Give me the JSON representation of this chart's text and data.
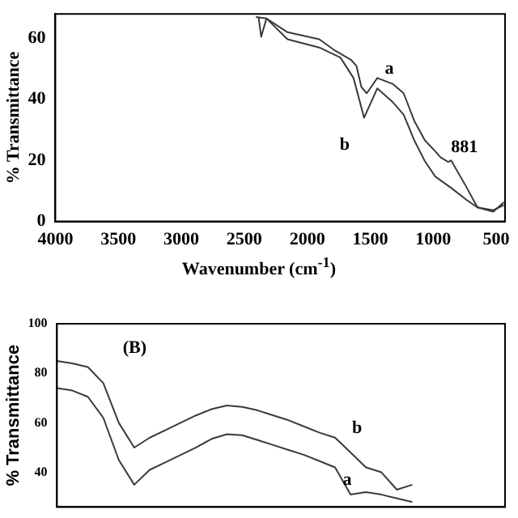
{
  "chart_data": [
    {
      "type": "line",
      "xlabel": "Wavenumber (cm$^{-1}$)",
      "ylabel": "% Transmittance",
      "xlim": [
        4000,
        430
      ],
      "xticks": [
        4000,
        3500,
        3000,
        2500,
        2000,
        1500,
        1000,
        500
      ],
      "ylim": [
        0,
        68
      ],
      "yticks": [
        0,
        20,
        40,
        60
      ],
      "grid": false,
      "legend": false,
      "annotations": [
        {
          "text": "881",
          "x": 881,
          "y": 19.5
        }
      ],
      "series": [
        {
          "name": "a",
          "color": "#3a3a3a",
          "x": [
            2408,
            2324,
            2157,
            1905,
            1780,
            1654,
            1610,
            1570,
            1528,
            1444,
            1319,
            1235,
            1151,
            1067,
            984,
            942,
            881,
            858,
            733,
            649,
            523,
            439
          ],
          "values": [
            67,
            66.5,
            62,
            59.7,
            56,
            53,
            51,
            44,
            42,
            47,
            45,
            42,
            33,
            26.6,
            23,
            21,
            19.5,
            20,
            11,
            4.6,
            3.7,
            5.4
          ]
        },
        {
          "name": "b",
          "color": "#3a3a3a",
          "x": [
            2387,
            2366,
            2324,
            2157,
            1905,
            1737,
            1633,
            1549,
            1444,
            1319,
            1235,
            1151,
            1067,
            984,
            858,
            733,
            649,
            523,
            439
          ],
          "values": [
            67,
            60.5,
            66.5,
            59.7,
            57,
            53.7,
            47,
            34,
            43.6,
            39,
            35,
            26.6,
            19.8,
            14.7,
            11,
            7,
            4.6,
            3.2,
            6.3
          ]
        }
      ]
    },
    {
      "type": "line",
      "ylabel": "% Transmittance",
      "categories": [
        null,
        null,
        null,
        null,
        null,
        null,
        null,
        null,
        null,
        null,
        null,
        null,
        null,
        null,
        null,
        null,
        null,
        null,
        null,
        null,
        null,
        null,
        null,
        null,
        null,
        null,
        null,
        null,
        null,
        null
      ],
      "ylim": [
        26,
        100
      ],
      "yticks": [
        40,
        60,
        80,
        100
      ],
      "tick_labels": "y",
      "grid": false,
      "legend": false,
      "annotations": [
        "(B)"
      ],
      "series": [
        {
          "name": "b",
          "color": "#3a3a3a",
          "values": [
            85,
            84,
            82.5,
            76,
            60,
            50,
            54,
            57,
            60,
            63,
            65.5,
            67,
            66.4,
            65,
            63,
            61,
            58.5,
            56,
            54,
            48,
            42,
            40,
            33,
            35,
            null,
            null,
            null,
            null,
            null,
            null
          ]
        },
        {
          "name": "a",
          "color": "#3a3a3a",
          "values": [
            74,
            73,
            70.5,
            62,
            45,
            35,
            41,
            44,
            47,
            50,
            53.5,
            55.4,
            55,
            53,
            51,
            49,
            47,
            44.5,
            42,
            31,
            32,
            31,
            29.5,
            28,
            null,
            null,
            null,
            null,
            null,
            null
          ]
        }
      ]
    }
  ]
}
